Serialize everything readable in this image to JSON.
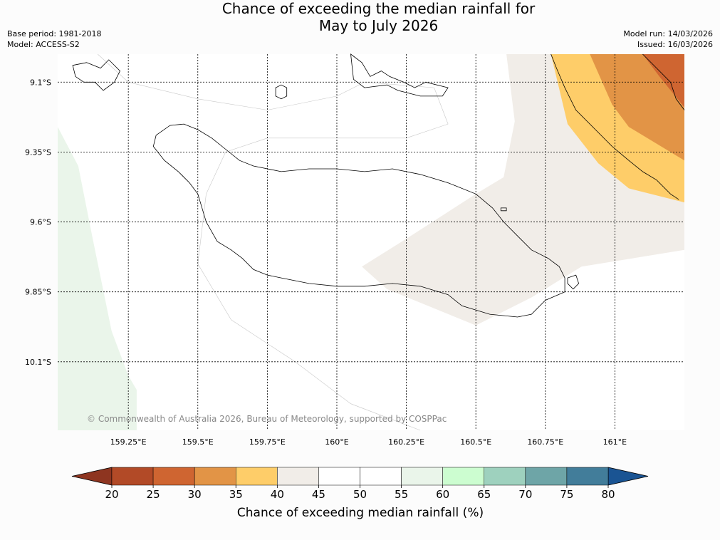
{
  "title": {
    "line1": "Chance of exceeding the median rainfall for",
    "line2": "May to July 2026"
  },
  "meta": {
    "base_period": "Base period: 1981-2018",
    "model": "Model: ACCESS-S2",
    "model_run": "Model run: 14/03/2026",
    "issued": "Issued: 16/03/2026"
  },
  "map": {
    "lon_extent": [
      158.996,
      161.25
    ],
    "lat_extent": [
      -10.345,
      -9.0
    ],
    "lat_grid": [
      {
        "value": -9.1,
        "label": "9.1°S"
      },
      {
        "value": -9.35,
        "label": "9.35°S"
      },
      {
        "value": -9.6,
        "label": "9.6°S"
      },
      {
        "value": -9.85,
        "label": "9.85°S"
      },
      {
        "value": -10.1,
        "label": "10.1°S"
      }
    ],
    "lon_grid": [
      {
        "value": 159.25,
        "label": "159.25°E"
      },
      {
        "value": 159.5,
        "label": "159.5°E"
      },
      {
        "value": 159.75,
        "label": "159.75°E"
      },
      {
        "value": 160.0,
        "label": "160°E"
      },
      {
        "value": 160.25,
        "label": "160.25°E"
      },
      {
        "value": 160.5,
        "label": "160.5°E"
      },
      {
        "value": 160.75,
        "label": "160.75°E"
      },
      {
        "value": 161.0,
        "label": "161°E"
      }
    ],
    "copyright": "© Commonwealth of Australia 2026, Bureau of Meteorology, supported by COSPPac",
    "regions": [
      {
        "name": "region-55-60-west",
        "category": "55-60",
        "color": "#eaf5ea",
        "points": [
          [
            158.996,
            -9.26
          ],
          [
            159.07,
            -9.4
          ],
          [
            159.12,
            -9.65
          ],
          [
            159.19,
            -9.99
          ],
          [
            159.25,
            -10.15
          ],
          [
            159.28,
            -10.2
          ],
          [
            159.28,
            -10.345
          ],
          [
            158.996,
            -10.345
          ]
        ]
      },
      {
        "name": "region-40-45-east",
        "category": "40-45",
        "color": "#f1ede8",
        "points": [
          [
            160.61,
            -9.0
          ],
          [
            160.64,
            -9.24
          ],
          [
            160.6,
            -9.44
          ],
          [
            160.5,
            -9.5
          ],
          [
            160.25,
            -9.66
          ],
          [
            160.09,
            -9.76
          ],
          [
            160.18,
            -9.84
          ],
          [
            160.5,
            -9.97
          ],
          [
            160.7,
            -9.87
          ],
          [
            160.88,
            -9.76
          ],
          [
            161.25,
            -9.7
          ],
          [
            161.25,
            -9.0
          ]
        ]
      },
      {
        "name": "region-35-40-northeast",
        "category": "35-40",
        "color": "#fecd69",
        "points": [
          [
            160.77,
            -9.0
          ],
          [
            160.83,
            -9.25
          ],
          [
            160.94,
            -9.39
          ],
          [
            161.05,
            -9.48
          ],
          [
            161.25,
            -9.53
          ],
          [
            161.25,
            -9.0
          ]
        ]
      },
      {
        "name": "region-30-35-northeast",
        "category": "30-35",
        "color": "#e29446",
        "points": [
          [
            160.91,
            -9.0
          ],
          [
            160.99,
            -9.18
          ],
          [
            161.05,
            -9.26
          ],
          [
            161.25,
            -9.38
          ],
          [
            161.25,
            -9.0
          ]
        ]
      },
      {
        "name": "region-25-30-northeast",
        "category": "25-30",
        "color": "#cf6531",
        "points": [
          [
            161.1,
            -9.0
          ],
          [
            161.16,
            -9.08
          ],
          [
            161.25,
            -9.19
          ],
          [
            161.25,
            -9.0
          ]
        ]
      }
    ],
    "coastlines": [
      {
        "name": "guadalcanal-coastline",
        "points": [
          [
            159.35,
            -9.29
          ],
          [
            159.4,
            -9.255
          ],
          [
            159.45,
            -9.25
          ],
          [
            159.5,
            -9.27
          ],
          [
            159.55,
            -9.3
          ],
          [
            159.6,
            -9.34
          ],
          [
            159.65,
            -9.38
          ],
          [
            159.7,
            -9.4
          ],
          [
            159.8,
            -9.42
          ],
          [
            159.9,
            -9.41
          ],
          [
            160.0,
            -9.41
          ],
          [
            160.1,
            -9.42
          ],
          [
            160.2,
            -9.41
          ],
          [
            160.3,
            -9.43
          ],
          [
            160.4,
            -9.46
          ],
          [
            160.5,
            -9.5
          ],
          [
            160.56,
            -9.55
          ],
          [
            160.6,
            -9.6
          ],
          [
            160.65,
            -9.65
          ],
          [
            160.7,
            -9.7
          ],
          [
            160.76,
            -9.73
          ],
          [
            160.8,
            -9.76
          ],
          [
            160.82,
            -9.8
          ],
          [
            160.82,
            -9.85
          ],
          [
            160.75,
            -9.88
          ],
          [
            160.7,
            -9.93
          ],
          [
            160.65,
            -9.94
          ],
          [
            160.55,
            -9.93
          ],
          [
            160.45,
            -9.9
          ],
          [
            160.4,
            -9.86
          ],
          [
            160.3,
            -9.83
          ],
          [
            160.2,
            -9.82
          ],
          [
            160.1,
            -9.83
          ],
          [
            160.0,
            -9.83
          ],
          [
            159.9,
            -9.82
          ],
          [
            159.8,
            -9.8
          ],
          [
            159.75,
            -9.79
          ],
          [
            159.7,
            -9.77
          ],
          [
            159.66,
            -9.73
          ],
          [
            159.62,
            -9.7
          ],
          [
            159.57,
            -9.67
          ],
          [
            159.53,
            -9.6
          ],
          [
            159.5,
            -9.5
          ],
          [
            159.47,
            -9.46
          ],
          [
            159.43,
            -9.42
          ],
          [
            159.38,
            -9.38
          ],
          [
            159.34,
            -9.33
          ],
          [
            159.35,
            -9.29
          ]
        ]
      },
      {
        "name": "savo-island-coastline",
        "points": [
          [
            159.78,
            -9.12
          ],
          [
            159.8,
            -9.11
          ],
          [
            159.82,
            -9.12
          ],
          [
            159.82,
            -9.15
          ],
          [
            159.8,
            -9.16
          ],
          [
            159.78,
            -9.15
          ],
          [
            159.78,
            -9.12
          ]
        ]
      },
      {
        "name": "florida-islands-coastline",
        "points": [
          [
            160.05,
            -9.0
          ],
          [
            160.09,
            -9.03
          ],
          [
            160.12,
            -9.08
          ],
          [
            160.16,
            -9.06
          ],
          [
            160.19,
            -9.08
          ],
          [
            160.24,
            -9.1
          ],
          [
            160.28,
            -9.12
          ],
          [
            160.32,
            -9.1
          ],
          [
            160.4,
            -9.12
          ],
          [
            160.38,
            -9.15
          ],
          [
            160.3,
            -9.15
          ],
          [
            160.22,
            -9.13
          ],
          [
            160.18,
            -9.11
          ],
          [
            160.1,
            -9.12
          ],
          [
            160.06,
            -9.09
          ],
          [
            160.05,
            -9.0
          ]
        ]
      },
      {
        "name": "russell-islands-coastline",
        "points": [
          [
            159.05,
            -9.04
          ],
          [
            159.1,
            -9.03
          ],
          [
            159.15,
            -9.05
          ],
          [
            159.18,
            -9.02
          ],
          [
            159.22,
            -9.06
          ],
          [
            159.2,
            -9.1
          ],
          [
            159.16,
            -9.13
          ],
          [
            159.13,
            -9.1
          ],
          [
            159.09,
            -9.1
          ],
          [
            159.06,
            -9.08
          ],
          [
            159.05,
            -9.04
          ]
        ]
      },
      {
        "name": "malaita-coastline",
        "points": [
          [
            160.77,
            -9.0
          ],
          [
            160.79,
            -9.05
          ],
          [
            160.82,
            -9.12
          ],
          [
            160.86,
            -9.2
          ],
          [
            160.93,
            -9.27
          ],
          [
            160.99,
            -9.33
          ],
          [
            161.05,
            -9.38
          ],
          [
            161.1,
            -9.42
          ],
          [
            161.15,
            -9.45
          ],
          [
            161.2,
            -9.5
          ],
          [
            161.23,
            -9.52
          ]
        ]
      },
      {
        "name": "malaita-east-coastline",
        "points": [
          [
            161.1,
            -9.0
          ],
          [
            161.15,
            -9.05
          ],
          [
            161.2,
            -9.1
          ],
          [
            161.22,
            -9.16
          ],
          [
            161.25,
            -9.2
          ]
        ]
      },
      {
        "name": "marau-island-coastline",
        "points": [
          [
            160.83,
            -9.8
          ],
          [
            160.86,
            -9.79
          ],
          [
            160.87,
            -9.82
          ],
          [
            160.85,
            -9.84
          ],
          [
            160.83,
            -9.82
          ],
          [
            160.83,
            -9.8
          ]
        ]
      },
      {
        "name": "small-island-east-coastline",
        "points": [
          [
            160.59,
            -9.55
          ],
          [
            160.61,
            -9.55
          ],
          [
            160.61,
            -9.56
          ],
          [
            160.59,
            -9.56
          ],
          [
            160.59,
            -9.55
          ]
        ]
      }
    ],
    "region_outlines": [
      {
        "name": "zone-outline-1",
        "points": [
          [
            159.14,
            -9.0
          ],
          [
            159.25,
            -9.1
          ],
          [
            159.5,
            -9.16
          ],
          [
            159.75,
            -9.2
          ],
          [
            160.0,
            -9.15
          ],
          [
            160.1,
            -9.1
          ],
          [
            160.35,
            -9.12
          ],
          [
            160.4,
            -9.25
          ],
          [
            160.25,
            -9.3
          ],
          [
            160.0,
            -9.3
          ],
          [
            159.75,
            -9.3
          ],
          [
            159.6,
            -9.35
          ],
          [
            159.53,
            -9.5
          ]
        ]
      },
      {
        "name": "zone-outline-2",
        "points": [
          [
            159.53,
            -9.5
          ],
          [
            159.5,
            -9.75
          ],
          [
            159.62,
            -9.95
          ],
          [
            159.85,
            -10.1
          ],
          [
            160.05,
            -10.25
          ],
          [
            160.3,
            -10.345
          ]
        ]
      }
    ]
  },
  "colorbar": {
    "label": "Chance of exceeding median rainfall (%)",
    "ticks": [
      "20",
      "25",
      "30",
      "35",
      "40",
      "45",
      "50",
      "55",
      "60",
      "65",
      "70",
      "75",
      "80"
    ],
    "under_color": "#8e3520",
    "over_color": "#1a5493",
    "colors": [
      "#b24a27",
      "#cf6531",
      "#e29446",
      "#fecd69",
      "#f1ede8",
      "#ffffff",
      "#ffffff",
      "#eaf5ea",
      "#ccfdd0",
      "#9ed1be",
      "#6ea5a7",
      "#427d9a"
    ]
  }
}
